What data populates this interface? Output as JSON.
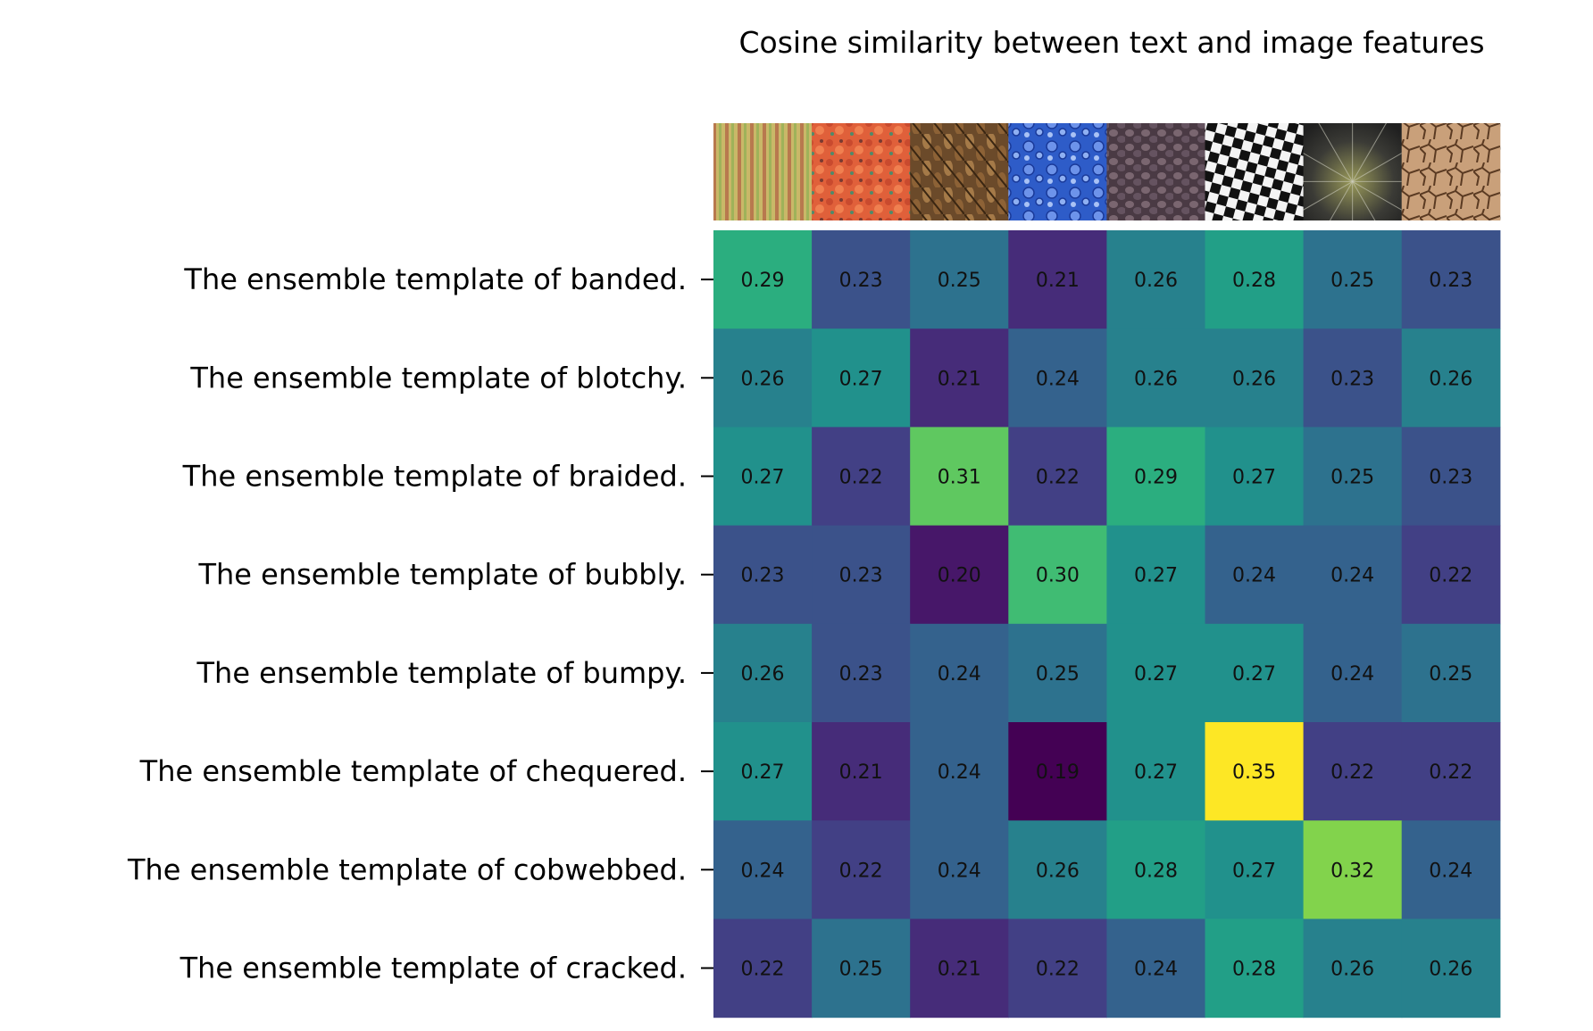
{
  "chart_data": {
    "type": "heatmap",
    "title": "Cosine similarity between text and image features",
    "colormap": "viridis",
    "color_range": [
      0.19,
      0.35
    ],
    "rows": [
      "The ensemble template of banded.",
      "The ensemble template of blotchy.",
      "The ensemble template of braided.",
      "The ensemble template of bubbly.",
      "The ensemble template of bumpy.",
      "The ensemble template of chequered.",
      "The ensemble template of cobwebbed.",
      "The ensemble template of cracked."
    ],
    "columns": [
      "banded-texture-image",
      "blotchy-texture-image",
      "braided-texture-image",
      "bubbly-texture-image",
      "bumpy-texture-image",
      "chequered-texture-image",
      "cobwebbed-texture-image",
      "cracked-texture-image"
    ],
    "values": [
      [
        0.29,
        0.23,
        0.25,
        0.21,
        0.26,
        0.28,
        0.25,
        0.23
      ],
      [
        0.26,
        0.27,
        0.21,
        0.24,
        0.26,
        0.26,
        0.23,
        0.26
      ],
      [
        0.27,
        0.22,
        0.31,
        0.22,
        0.29,
        0.27,
        0.25,
        0.23
      ],
      [
        0.23,
        0.23,
        0.2,
        0.3,
        0.27,
        0.24,
        0.24,
        0.22
      ],
      [
        0.26,
        0.23,
        0.24,
        0.25,
        0.27,
        0.27,
        0.24,
        0.25
      ],
      [
        0.27,
        0.21,
        0.24,
        0.19,
        0.27,
        0.35,
        0.22,
        0.22
      ],
      [
        0.24,
        0.22,
        0.24,
        0.26,
        0.28,
        0.27,
        0.32,
        0.24
      ],
      [
        0.22,
        0.25,
        0.21,
        0.22,
        0.24,
        0.28,
        0.26,
        0.26
      ]
    ]
  }
}
